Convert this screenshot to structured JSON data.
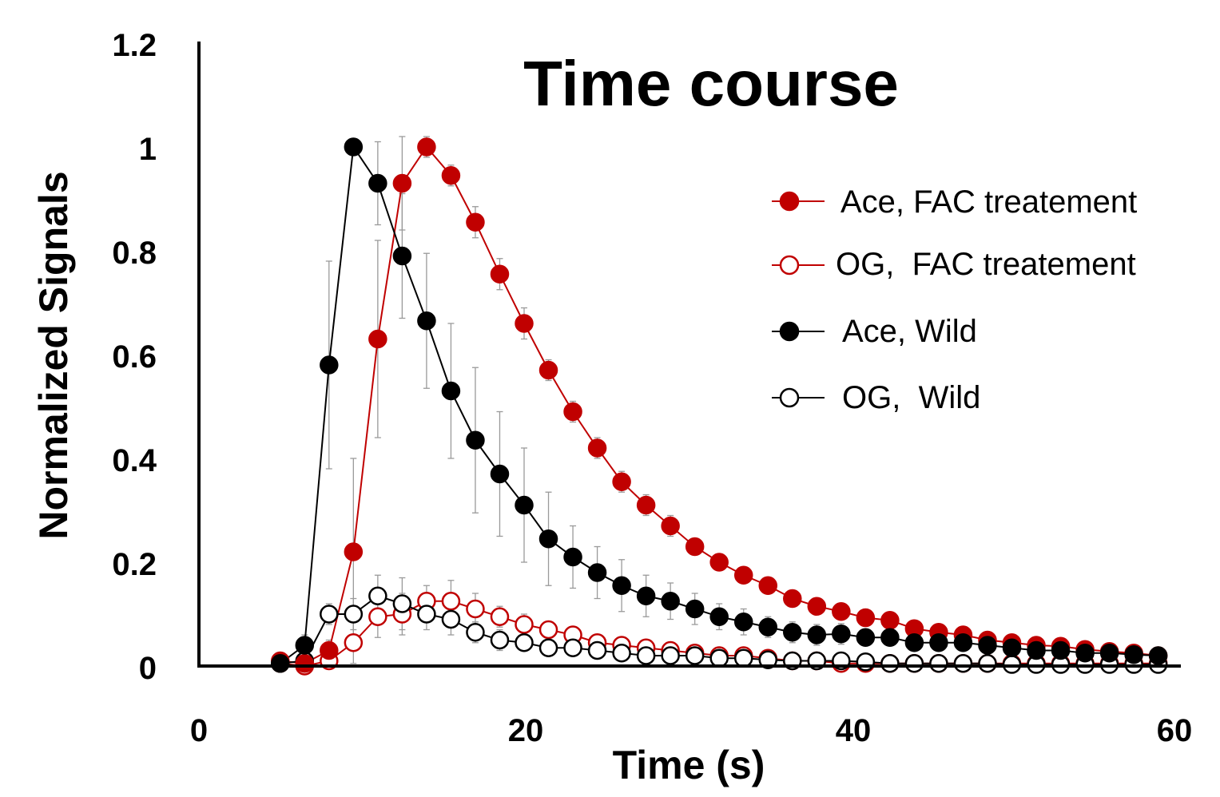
{
  "chart_data": {
    "type": "line",
    "title": "Time course",
    "xlabel": "Time (s)",
    "ylabel": "Normalized Signals",
    "xlim": [
      0,
      60
    ],
    "ylim": [
      0,
      1.2
    ],
    "x_ticks": [
      "0",
      "20",
      "40",
      "60"
    ],
    "y_ticks": [
      "0",
      "0.2",
      "0.4",
      "0.6",
      "0.8",
      "1",
      "1.2"
    ],
    "x_tick_values": [
      0,
      20,
      40,
      60
    ],
    "y_tick_values": [
      0,
      0.2,
      0.4,
      0.6,
      0.8,
      1.0,
      1.2
    ],
    "grid": false,
    "legend_position": "top-right",
    "x": [
      5.0,
      6.5,
      8.0,
      9.5,
      11.0,
      12.5,
      14.0,
      15.5,
      17.0,
      18.5,
      20.0,
      21.5,
      23.0,
      24.5,
      26.0,
      27.5,
      29.0,
      30.5,
      32.0,
      33.5,
      35.0,
      36.5,
      38.0,
      39.5,
      41.0,
      42.5,
      44.0,
      45.5,
      47.0,
      48.5,
      50.0,
      51.5,
      53.0,
      54.5,
      56.0,
      57.5,
      59.0
    ],
    "series": [
      {
        "name": "Ace, FAC treatement",
        "color": "#c00000",
        "filled": true,
        "values": [
          0.01,
          0.005,
          0.03,
          0.22,
          0.63,
          0.93,
          1.0,
          0.945,
          0.855,
          0.755,
          0.66,
          0.57,
          0.49,
          0.42,
          0.355,
          0.31,
          0.27,
          0.23,
          0.2,
          0.175,
          0.155,
          0.13,
          0.115,
          0.105,
          0.093,
          0.088,
          0.072,
          0.065,
          0.06,
          0.05,
          0.045,
          0.04,
          0.038,
          0.032,
          0.028,
          0.025,
          0.02
        ],
        "errors": [
          0.005,
          0.005,
          0.02,
          0.18,
          0.19,
          0.09,
          0.02,
          0.02,
          0.03,
          0.03,
          0.03,
          0.02,
          0.02,
          0.02,
          0.02,
          0.02,
          0.02,
          0.015,
          0.015,
          0.015,
          0.01,
          0.01,
          0.01,
          0.01,
          0.01,
          0.01,
          0.01,
          0.01,
          0.01,
          0.01,
          0.01,
          0.01,
          0.01,
          0.01,
          0.01,
          0.01,
          0.01
        ]
      },
      {
        "name": "OG,  FAC treatement",
        "color": "#c00000",
        "filled": false,
        "values": [
          0.005,
          0.0,
          0.01,
          0.045,
          0.095,
          0.1,
          0.125,
          0.125,
          0.11,
          0.095,
          0.08,
          0.07,
          0.06,
          0.045,
          0.04,
          0.035,
          0.03,
          0.025,
          0.02,
          0.02,
          0.015,
          0.01,
          0.01,
          0.005,
          0.005,
          0.005,
          0.005,
          0.005,
          0.005,
          0.005,
          0.005,
          0.005,
          0.005,
          0.005,
          0.005,
          0.005,
          0.005
        ],
        "errors": [
          0.005,
          0.005,
          0.01,
          0.04,
          0.04,
          0.04,
          0.03,
          0.04,
          0.03,
          0.02,
          0.02,
          0.015,
          0.015,
          0.01,
          0.01,
          0.01,
          0.01,
          0.01,
          0.01,
          0.01,
          0.01,
          0.01,
          0.005,
          0.005,
          0.005,
          0.005,
          0.005,
          0.005,
          0.005,
          0.005,
          0.005,
          0.005,
          0.005,
          0.005,
          0.005,
          0.005,
          0.005
        ]
      },
      {
        "name": "Ace, Wild",
        "color": "#000000",
        "filled": true,
        "values": [
          0.005,
          0.04,
          0.58,
          1.0,
          0.93,
          0.79,
          0.665,
          0.53,
          0.435,
          0.37,
          0.31,
          0.245,
          0.21,
          0.18,
          0.155,
          0.135,
          0.125,
          0.11,
          0.095,
          0.085,
          0.075,
          0.065,
          0.06,
          0.062,
          0.055,
          0.055,
          0.045,
          0.045,
          0.045,
          0.04,
          0.035,
          0.03,
          0.03,
          0.025,
          0.025,
          0.022,
          0.02
        ],
        "errors": [
          0.005,
          0.02,
          0.2,
          0.01,
          0.08,
          0.12,
          0.13,
          0.13,
          0.14,
          0.12,
          0.11,
          0.09,
          0.06,
          0.05,
          0.05,
          0.04,
          0.035,
          0.03,
          0.025,
          0.025,
          0.02,
          0.02,
          0.02,
          0.02,
          0.015,
          0.015,
          0.015,
          0.015,
          0.015,
          0.01,
          0.01,
          0.01,
          0.01,
          0.01,
          0.01,
          0.01,
          0.01
        ]
      },
      {
        "name": "OG,  Wild",
        "color": "#000000",
        "filled": false,
        "values": [
          0.005,
          0.01,
          0.1,
          0.1,
          0.135,
          0.12,
          0.1,
          0.09,
          0.065,
          0.05,
          0.045,
          0.035,
          0.035,
          0.03,
          0.025,
          0.02,
          0.02,
          0.02,
          0.015,
          0.015,
          0.012,
          0.01,
          0.01,
          0.01,
          0.008,
          0.005,
          0.005,
          0.005,
          0.005,
          0.005,
          0.003,
          0.003,
          0.003,
          0.003,
          0.003,
          0.003,
          0.003
        ],
        "errors": [
          0.005,
          0.005,
          0.02,
          0.03,
          0.04,
          0.05,
          0.03,
          0.03,
          0.02,
          0.02,
          0.015,
          0.01,
          0.01,
          0.01,
          0.01,
          0.01,
          0.01,
          0.01,
          0.01,
          0.01,
          0.005,
          0.005,
          0.005,
          0.005,
          0.005,
          0.005,
          0.005,
          0.005,
          0.005,
          0.005,
          0.005,
          0.005,
          0.005,
          0.005,
          0.005,
          0.005,
          0.005
        ]
      }
    ]
  }
}
